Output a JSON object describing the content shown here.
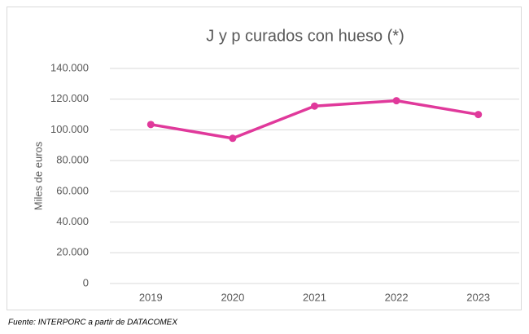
{
  "chart_data": {
    "type": "line",
    "title": "J y p curados con hueso (*)",
    "y_label": "Miles de euros",
    "footnote": "Fuente: INTERPORC  a partir de DATACOMEX",
    "categories": [
      "2019",
      "2020",
      "2021",
      "2022",
      "2023"
    ],
    "series": [
      {
        "name": "J y p curados con hueso",
        "color": "#e0399b",
        "values": [
          103500,
          94500,
          115500,
          119000,
          110000
        ]
      }
    ],
    "ylim": [
      0,
      140000
    ],
    "yticks": [
      0,
      {
        "value": 20000,
        "label": "20.000"
      },
      {
        "value": 40000,
        "label": "40.000"
      },
      {
        "value": 60000,
        "label": "60.000"
      },
      {
        "value": 80000,
        "label": "80.000"
      },
      {
        "value": 100000,
        "label": "100.000"
      },
      {
        "value": 120000,
        "label": "120.000"
      },
      {
        "value": 140000,
        "label": "140.000"
      }
    ],
    "grid": true
  }
}
